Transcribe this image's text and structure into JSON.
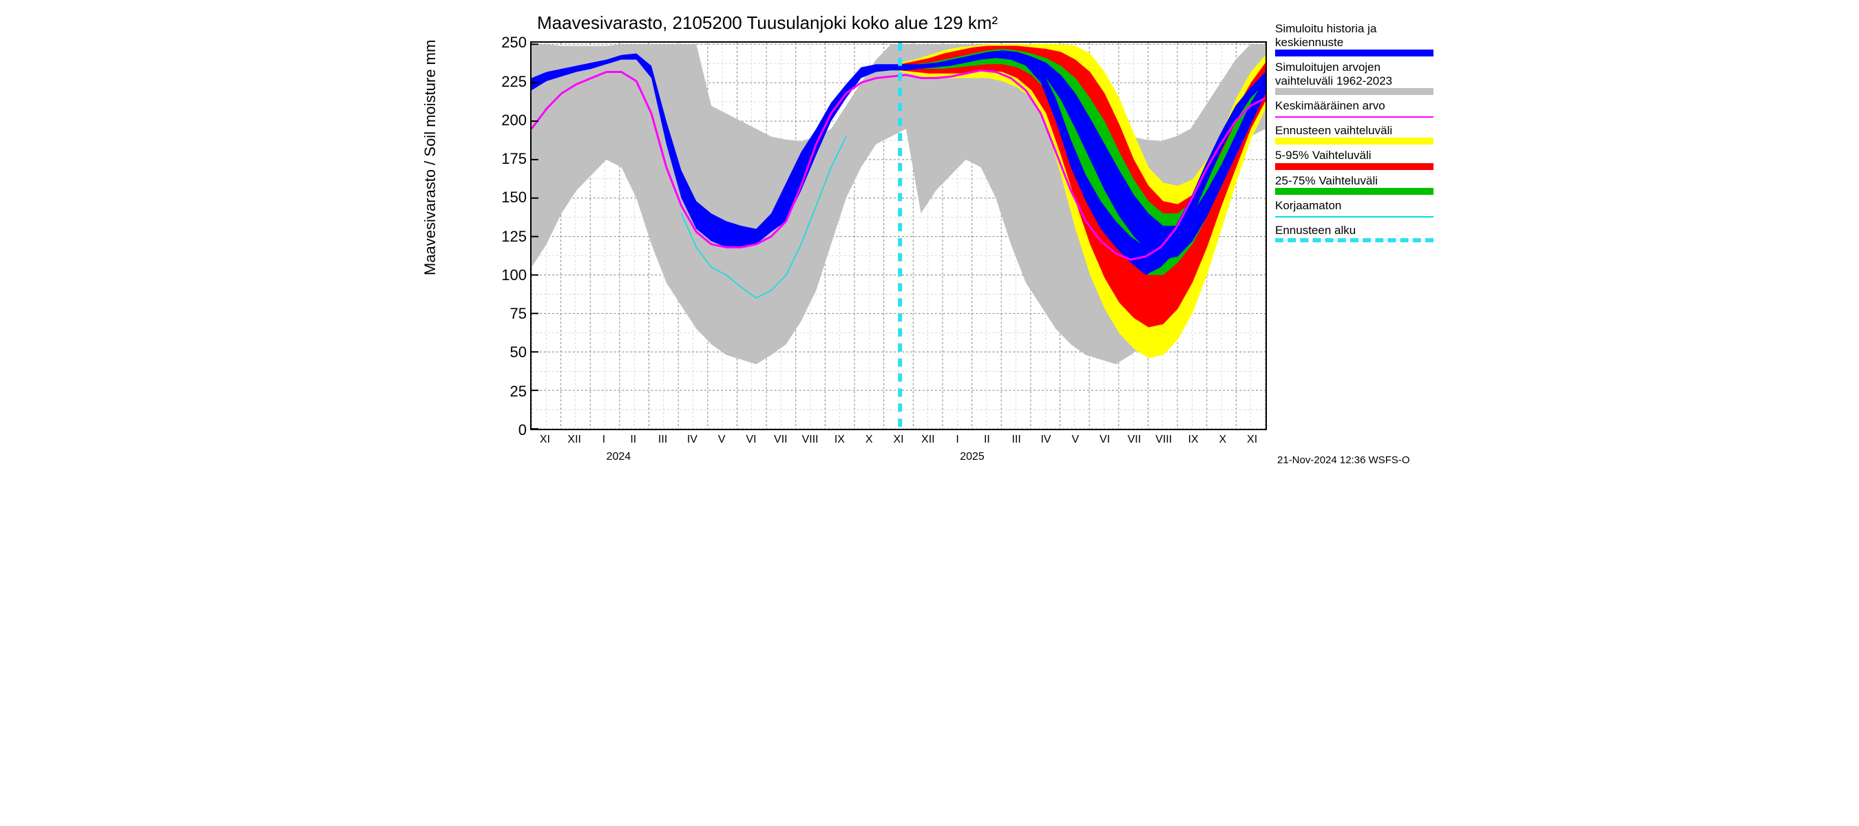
{
  "chart": {
    "type": "line-with-bands",
    "title": "Maavesivarasto, 2105200 Tuusulanjoki koko alue 129 km²",
    "yaxis": {
      "label": "Maavesivarasto / Soil moisture    mm",
      "min": 0,
      "max": 251,
      "ticks": [
        0,
        25,
        50,
        75,
        100,
        125,
        150,
        175,
        200,
        225,
        250
      ],
      "label_fontsize": 22,
      "tick_fontsize": 22
    },
    "xaxis": {
      "months": [
        "XI",
        "XII",
        "I",
        "II",
        "III",
        "IV",
        "V",
        "VI",
        "VII",
        "VIII",
        "IX",
        "X",
        "XI",
        "XII",
        "I",
        "II",
        "III",
        "IV",
        "V",
        "VI",
        "VII",
        "VIII",
        "IX",
        "X",
        "XI"
      ],
      "years": [
        {
          "label": "2024",
          "center_month_index": 2.5
        },
        {
          "label": "2025",
          "center_month_index": 14.5
        }
      ],
      "tick_fontsize": 16
    },
    "footer": "21-Nov-2024 12:36 WSFS-O",
    "forecast_start_month_index": 12.3,
    "colors": {
      "background": "#ffffff",
      "grid": "#808080",
      "minor_grid": "#b0b0b0",
      "axis": "#000000",
      "hist_range": "#c0c0c0",
      "blue": "#0000ff",
      "magenta": "#ff00ff",
      "yellow": "#ffff00",
      "red": "#ff0000",
      "green": "#00c000",
      "cyan": "#00e0e0",
      "cyan_dash": "#2ce0f0"
    },
    "legend": [
      {
        "label": "Simuloitu historia ja keskiennuste",
        "color": "#0000ff",
        "style": "thick"
      },
      {
        "label": "Simuloitujen arvojen vaihteluväli 1962-2023",
        "color": "#c0c0c0",
        "style": "thick"
      },
      {
        "label": "Keskimääräinen arvo",
        "color": "#ff00ff",
        "style": "thin"
      },
      {
        "label": "Ennusteen vaihteluväli",
        "color": "#ffff00",
        "style": "thick"
      },
      {
        "label": "5-95% Vaihteluväli",
        "color": "#ff0000",
        "style": "thick"
      },
      {
        "label": "25-75% Vaihteluväli",
        "color": "#00c000",
        "style": "thick"
      },
      {
        "label": "Korjaamaton",
        "color": "#00e0e0",
        "style": "thin"
      },
      {
        "label": "Ennusteen alku",
        "color": "#2ce0f0",
        "style": "dash"
      }
    ],
    "series": {
      "hist_range": {
        "upper": [
          250,
          250,
          249,
          249,
          249,
          249,
          250,
          250,
          250,
          250,
          250,
          250,
          210,
          205,
          200,
          195,
          190,
          188,
          187,
          190,
          195,
          210,
          225,
          240,
          250,
          250,
          250,
          250,
          250,
          250,
          250,
          250,
          250,
          250,
          250,
          250,
          210,
          205,
          200,
          195,
          190,
          188,
          187,
          190,
          195,
          210,
          225,
          240,
          250,
          250
        ],
        "lower": [
          105,
          120,
          140,
          155,
          165,
          175,
          170,
          150,
          120,
          95,
          80,
          65,
          55,
          48,
          45,
          42,
          48,
          55,
          70,
          90,
          120,
          150,
          170,
          185,
          190,
          195,
          140,
          155,
          165,
          175,
          170,
          150,
          120,
          95,
          80,
          65,
          55,
          48,
          45,
          42,
          48,
          55,
          70,
          90,
          120,
          150,
          170,
          185,
          190,
          195
        ]
      },
      "mean_magenta": [
        195,
        208,
        218,
        224,
        228,
        232,
        232,
        226,
        205,
        170,
        145,
        128,
        120,
        118,
        118,
        120,
        125,
        135,
        158,
        185,
        205,
        218,
        225,
        228,
        229,
        230,
        228,
        228,
        229,
        231,
        233,
        232,
        228,
        220,
        205,
        180,
        155,
        135,
        122,
        114,
        110,
        112,
        118,
        130,
        148,
        168,
        185,
        200,
        210,
        215
      ],
      "blue_main_low": [
        220,
        226,
        229,
        232,
        234,
        237,
        240,
        240,
        228,
        185,
        150,
        130,
        122,
        118,
        118,
        120,
        128,
        135,
        155,
        178,
        200,
        215,
        228,
        232,
        233,
        233,
        234,
        235,
        236,
        238,
        240,
        241,
        240,
        236,
        225,
        200,
        170,
        148,
        130,
        118,
        108,
        100,
        105,
        115,
        135,
        158,
        180,
        200,
        215,
        225
      ],
      "blue_main_high": [
        228,
        232,
        234,
        236,
        238,
        240,
        243,
        244,
        236,
        200,
        168,
        148,
        140,
        135,
        132,
        130,
        140,
        160,
        180,
        195,
        212,
        224,
        235,
        237,
        237,
        237,
        237,
        238,
        239,
        241,
        243,
        245,
        245,
        243,
        235,
        215,
        188,
        165,
        148,
        135,
        125,
        118,
        122,
        132,
        150,
        172,
        192,
        210,
        222,
        232
      ],
      "uncorrected_cyan": [
        null,
        null,
        null,
        null,
        null,
        null,
        null,
        null,
        null,
        null,
        140,
        118,
        105,
        100,
        92,
        85,
        90,
        100,
        120,
        145,
        170,
        190,
        null,
        null,
        null,
        null,
        null,
        null,
        null,
        null,
        null,
        null,
        null,
        null,
        null,
        null,
        null,
        null,
        null,
        null,
        null,
        null,
        null,
        null,
        null,
        null,
        null,
        null,
        null,
        null
      ],
      "forecast_yellow": {
        "upper": [
          238,
          240,
          243,
          246,
          248,
          249,
          250,
          250,
          250,
          250,
          250,
          250,
          249,
          244,
          232,
          215,
          192,
          170,
          160,
          158,
          162,
          175,
          192,
          215,
          232,
          243
        ],
        "lower": [
          232,
          230,
          228,
          228,
          228,
          228,
          228,
          226,
          222,
          215,
          198,
          165,
          130,
          100,
          78,
          62,
          52,
          46,
          48,
          58,
          75,
          100,
          130,
          160,
          188,
          208
        ]
      },
      "forecast_red": {
        "upper": [
          237,
          239,
          241,
          244,
          246,
          248,
          249,
          249,
          249,
          248,
          247,
          245,
          240,
          232,
          218,
          198,
          175,
          158,
          148,
          146,
          152,
          168,
          185,
          208,
          225,
          238
        ],
        "lower": [
          233,
          232,
          231,
          231,
          231,
          232,
          233,
          232,
          228,
          220,
          205,
          178,
          148,
          120,
          98,
          82,
          72,
          66,
          68,
          78,
          95,
          118,
          145,
          170,
          195,
          213
        ]
      },
      "forecast_green": {
        "upper": [
          236,
          237,
          238,
          240,
          242,
          244,
          246,
          247,
          246,
          244,
          241,
          236,
          228,
          215,
          200,
          180,
          162,
          148,
          140,
          140,
          148,
          162,
          180,
          200,
          218,
          232
        ],
        "lower": [
          234,
          234,
          234,
          234,
          235,
          236,
          237,
          237,
          235,
          230,
          220,
          200,
          175,
          152,
          132,
          118,
          108,
          100,
          100,
          108,
          120,
          138,
          158,
          180,
          200,
          218
        ]
      },
      "forecast_blue": {
        "upper": [
          235,
          236,
          237,
          239,
          241,
          243,
          245,
          246,
          245,
          242,
          238,
          230,
          218,
          202,
          185,
          168,
          152,
          140,
          132,
          132,
          140,
          155,
          172,
          192,
          212,
          228
        ],
        "lower": [
          234,
          235,
          235,
          236,
          237,
          239,
          241,
          242,
          240,
          236,
          228,
          214,
          195,
          175,
          155,
          138,
          125,
          115,
          110,
          112,
          122,
          138,
          158,
          178,
          198,
          218
        ]
      }
    }
  }
}
